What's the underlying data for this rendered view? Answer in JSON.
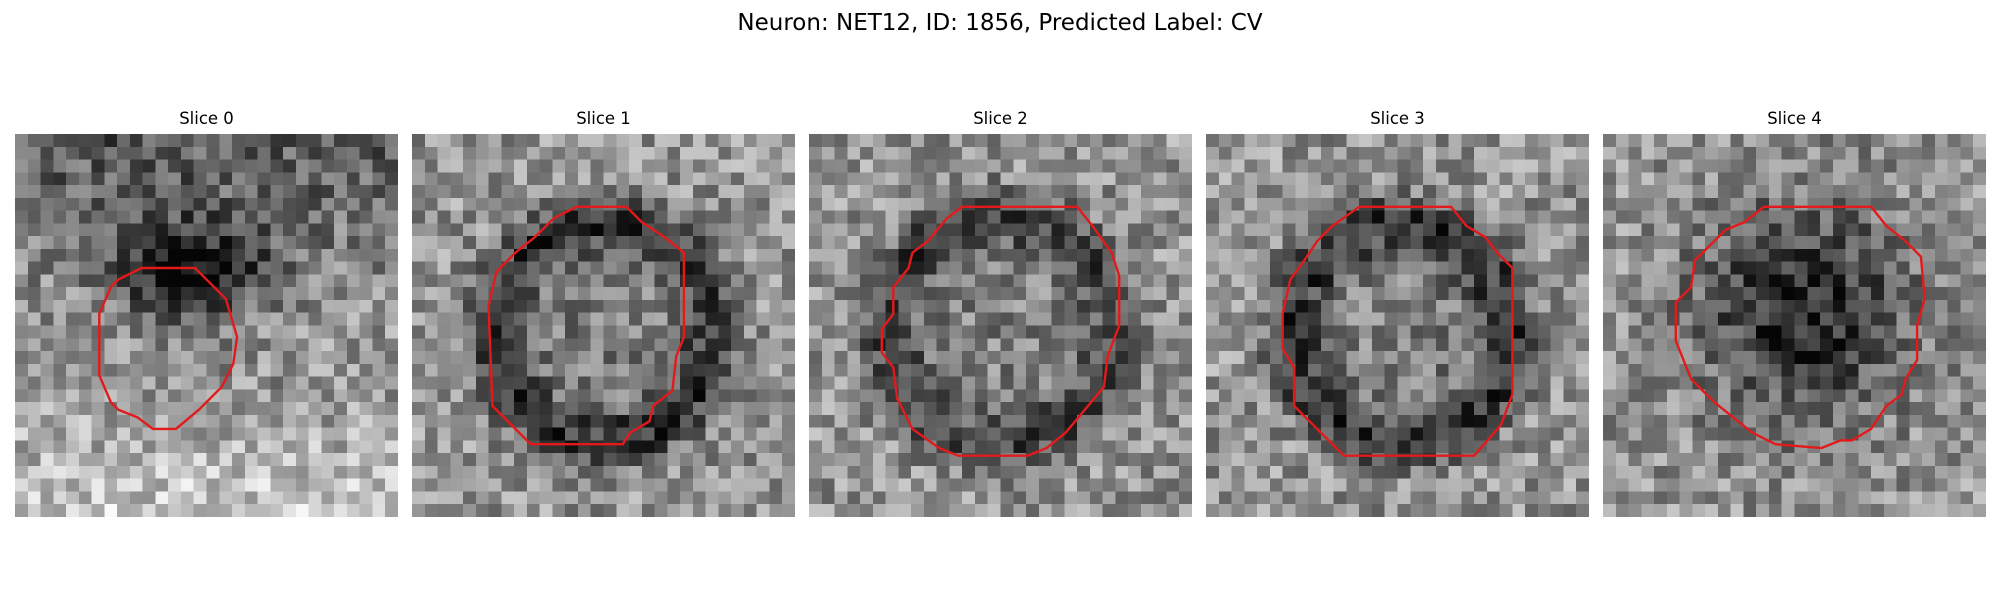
{
  "figure": {
    "title": "Neuron: NET12, ID: 1856, Predicted Label: CV",
    "contour_color": "#e31a1c",
    "colormap": "gray"
  },
  "grid_size": [
    30,
    30
  ],
  "panels": [
    {
      "title": "Slice 0",
      "dark_center": [
        0.46,
        0.36
      ],
      "dark_radius": [
        0.22,
        0.14
      ],
      "dark_strength": 0.5,
      "ring": false,
      "top_dark": 0.35,
      "bottom_bright": 0.25,
      "contour": [
        [
          0.27,
          0.38
        ],
        [
          0.33,
          0.35
        ],
        [
          0.47,
          0.35
        ],
        [
          0.55,
          0.43
        ],
        [
          0.58,
          0.53
        ],
        [
          0.57,
          0.6
        ],
        [
          0.54,
          0.66
        ],
        [
          0.48,
          0.72
        ],
        [
          0.42,
          0.77
        ],
        [
          0.36,
          0.77
        ],
        [
          0.32,
          0.74
        ],
        [
          0.27,
          0.72
        ],
        [
          0.25,
          0.7
        ],
        [
          0.22,
          0.63
        ],
        [
          0.22,
          0.47
        ],
        [
          0.25,
          0.4
        ]
      ]
    },
    {
      "title": "Slice 1",
      "dark_center": [
        0.5,
        0.52
      ],
      "dark_radius": [
        0.32,
        0.32
      ],
      "dark_strength": 0.35,
      "ring": true,
      "top_dark": 0.0,
      "bottom_bright": 0.0,
      "contour": [
        [
          0.47,
          0.19
        ],
        [
          0.56,
          0.19
        ],
        [
          0.6,
          0.23
        ],
        [
          0.66,
          0.27
        ],
        [
          0.71,
          0.31
        ],
        [
          0.71,
          0.53
        ],
        [
          0.69,
          0.58
        ],
        [
          0.68,
          0.67
        ],
        [
          0.63,
          0.71
        ],
        [
          0.62,
          0.75
        ],
        [
          0.57,
          0.78
        ],
        [
          0.55,
          0.81
        ],
        [
          0.31,
          0.81
        ],
        [
          0.21,
          0.71
        ],
        [
          0.2,
          0.45
        ],
        [
          0.22,
          0.36
        ],
        [
          0.27,
          0.31
        ],
        [
          0.32,
          0.27
        ],
        [
          0.37,
          0.22
        ],
        [
          0.43,
          0.19
        ]
      ]
    },
    {
      "title": "Slice 2",
      "dark_center": [
        0.5,
        0.51
      ],
      "dark_radius": [
        0.33,
        0.33
      ],
      "dark_strength": 0.3,
      "ring": true,
      "top_dark": 0.0,
      "bottom_bright": 0.0,
      "contour": [
        [
          0.4,
          0.19
        ],
        [
          0.7,
          0.19
        ],
        [
          0.74,
          0.24
        ],
        [
          0.79,
          0.31
        ],
        [
          0.81,
          0.37
        ],
        [
          0.81,
          0.5
        ],
        [
          0.78,
          0.58
        ],
        [
          0.77,
          0.66
        ],
        [
          0.72,
          0.72
        ],
        [
          0.67,
          0.78
        ],
        [
          0.62,
          0.82
        ],
        [
          0.57,
          0.84
        ],
        [
          0.39,
          0.84
        ],
        [
          0.34,
          0.82
        ],
        [
          0.27,
          0.77
        ],
        [
          0.23,
          0.69
        ],
        [
          0.22,
          0.61
        ],
        [
          0.19,
          0.57
        ],
        [
          0.19,
          0.51
        ],
        [
          0.22,
          0.47
        ],
        [
          0.22,
          0.4
        ],
        [
          0.26,
          0.35
        ],
        [
          0.27,
          0.31
        ],
        [
          0.31,
          0.28
        ],
        [
          0.36,
          0.22
        ]
      ]
    },
    {
      "title": "Slice 3",
      "dark_center": [
        0.51,
        0.52
      ],
      "dark_radius": [
        0.32,
        0.32
      ],
      "dark_strength": 0.35,
      "ring": true,
      "top_dark": 0.0,
      "bottom_bright": 0.0,
      "contour": [
        [
          0.4,
          0.19
        ],
        [
          0.64,
          0.19
        ],
        [
          0.68,
          0.24
        ],
        [
          0.73,
          0.27
        ],
        [
          0.76,
          0.31
        ],
        [
          0.8,
          0.35
        ],
        [
          0.8,
          0.68
        ],
        [
          0.77,
          0.76
        ],
        [
          0.7,
          0.84
        ],
        [
          0.36,
          0.84
        ],
        [
          0.23,
          0.71
        ],
        [
          0.23,
          0.61
        ],
        [
          0.2,
          0.56
        ],
        [
          0.2,
          0.47
        ],
        [
          0.22,
          0.38
        ],
        [
          0.25,
          0.34
        ],
        [
          0.29,
          0.28
        ],
        [
          0.33,
          0.24
        ]
      ]
    },
    {
      "title": "Slice 4",
      "dark_center": [
        0.52,
        0.46
      ],
      "dark_radius": [
        0.3,
        0.3
      ],
      "dark_strength": 0.45,
      "ring": false,
      "top_dark": 0.0,
      "bottom_bright": 0.0,
      "contour": [
        [
          0.42,
          0.19
        ],
        [
          0.7,
          0.19
        ],
        [
          0.74,
          0.24
        ],
        [
          0.79,
          0.28
        ],
        [
          0.83,
          0.32
        ],
        [
          0.84,
          0.43
        ],
        [
          0.82,
          0.5
        ],
        [
          0.82,
          0.59
        ],
        [
          0.79,
          0.64
        ],
        [
          0.78,
          0.68
        ],
        [
          0.74,
          0.71
        ],
        [
          0.7,
          0.77
        ],
        [
          0.65,
          0.8
        ],
        [
          0.62,
          0.8
        ],
        [
          0.57,
          0.82
        ],
        [
          0.45,
          0.81
        ],
        [
          0.39,
          0.78
        ],
        [
          0.29,
          0.7
        ],
        [
          0.23,
          0.64
        ],
        [
          0.19,
          0.54
        ],
        [
          0.19,
          0.44
        ],
        [
          0.23,
          0.4
        ],
        [
          0.24,
          0.33
        ],
        [
          0.32,
          0.25
        ],
        [
          0.37,
          0.23
        ]
      ]
    }
  ]
}
